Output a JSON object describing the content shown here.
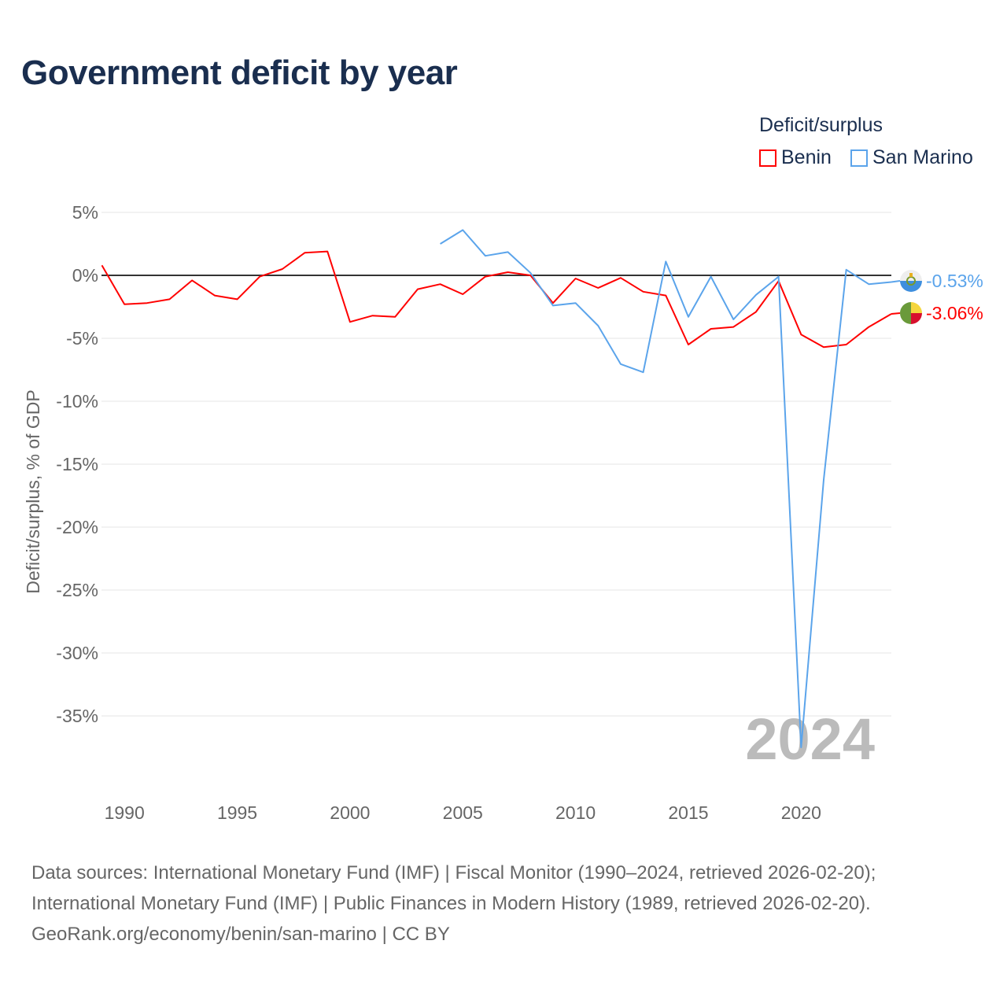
{
  "chart_data": {
    "type": "line",
    "title": "Government deficit by year",
    "ylabel": "Deficit/surplus, % of GDP",
    "xlabel": "",
    "ylim": [
      -40,
      5
    ],
    "xlim": [
      1989,
      2024
    ],
    "yticks": [
      "5%",
      "0%",
      "-5%",
      "-10%",
      "-15%",
      "-20%",
      "-25%",
      "-30%",
      "-35%"
    ],
    "ytick_values": [
      5,
      0,
      -5,
      -10,
      -15,
      -20,
      -25,
      -30,
      -35
    ],
    "xticks": [
      "1990",
      "1995",
      "2000",
      "2005",
      "2010",
      "2015",
      "2020"
    ],
    "xtick_values": [
      1990,
      1995,
      2000,
      2005,
      2010,
      2015,
      2020
    ],
    "legend_title": "Deficit/surplus",
    "legend_placement": "top-right",
    "year_label": "2024",
    "series": [
      {
        "name": "Benin",
        "color": "#ff0000",
        "end_label": "-3.06%",
        "x": [
          1989,
          1990,
          1991,
          1992,
          1993,
          1994,
          1995,
          1996,
          1997,
          1998,
          1999,
          2000,
          2001,
          2002,
          2003,
          2004,
          2005,
          2006,
          2007,
          2008,
          2009,
          2010,
          2011,
          2012,
          2013,
          2014,
          2015,
          2016,
          2017,
          2018,
          2019,
          2020,
          2021,
          2022,
          2023,
          2024
        ],
        "values": [
          0.8,
          -2.3,
          -2.2,
          -1.9,
          -0.4,
          -1.6,
          -1.9,
          -0.1,
          0.5,
          1.8,
          1.9,
          -3.7,
          -3.2,
          -3.3,
          -1.1,
          -0.7,
          -1.5,
          -0.1,
          0.25,
          0,
          -2.2,
          -0.25,
          -1.0,
          -0.2,
          -1.3,
          -1.6,
          -5.5,
          -4.25,
          -4.1,
          -2.9,
          -0.45,
          -4.7,
          -5.7,
          -5.5,
          -4.1,
          -3.06
        ]
      },
      {
        "name": "San Marino",
        "color": "#5ba4eb",
        "end_label": "-0.53%",
        "x": [
          2004,
          2005,
          2006,
          2007,
          2008,
          2009,
          2010,
          2011,
          2012,
          2013,
          2014,
          2015,
          2016,
          2017,
          2018,
          2019,
          2020,
          2021,
          2022,
          2023,
          2024
        ],
        "values": [
          2.5,
          3.6,
          1.55,
          1.85,
          0.2,
          -2.4,
          -2.2,
          -4.0,
          -7.05,
          -7.7,
          1.1,
          -3.3,
          -0.1,
          -3.5,
          -1.55,
          -0.1,
          -37.5,
          -16.25,
          0.45,
          -0.7,
          -0.53
        ]
      }
    ]
  },
  "footer": {
    "line1": "Data sources: International Monetary Fund (IMF) | Fiscal Monitor (1990–2024, retrieved 2026-02-20);",
    "line2": "International Monetary Fund (IMF) | Public Finances in Modern History (1989, retrieved 2026-02-20).",
    "line3": "GeoRank.org/economy/benin/san-marino | CC BY"
  }
}
